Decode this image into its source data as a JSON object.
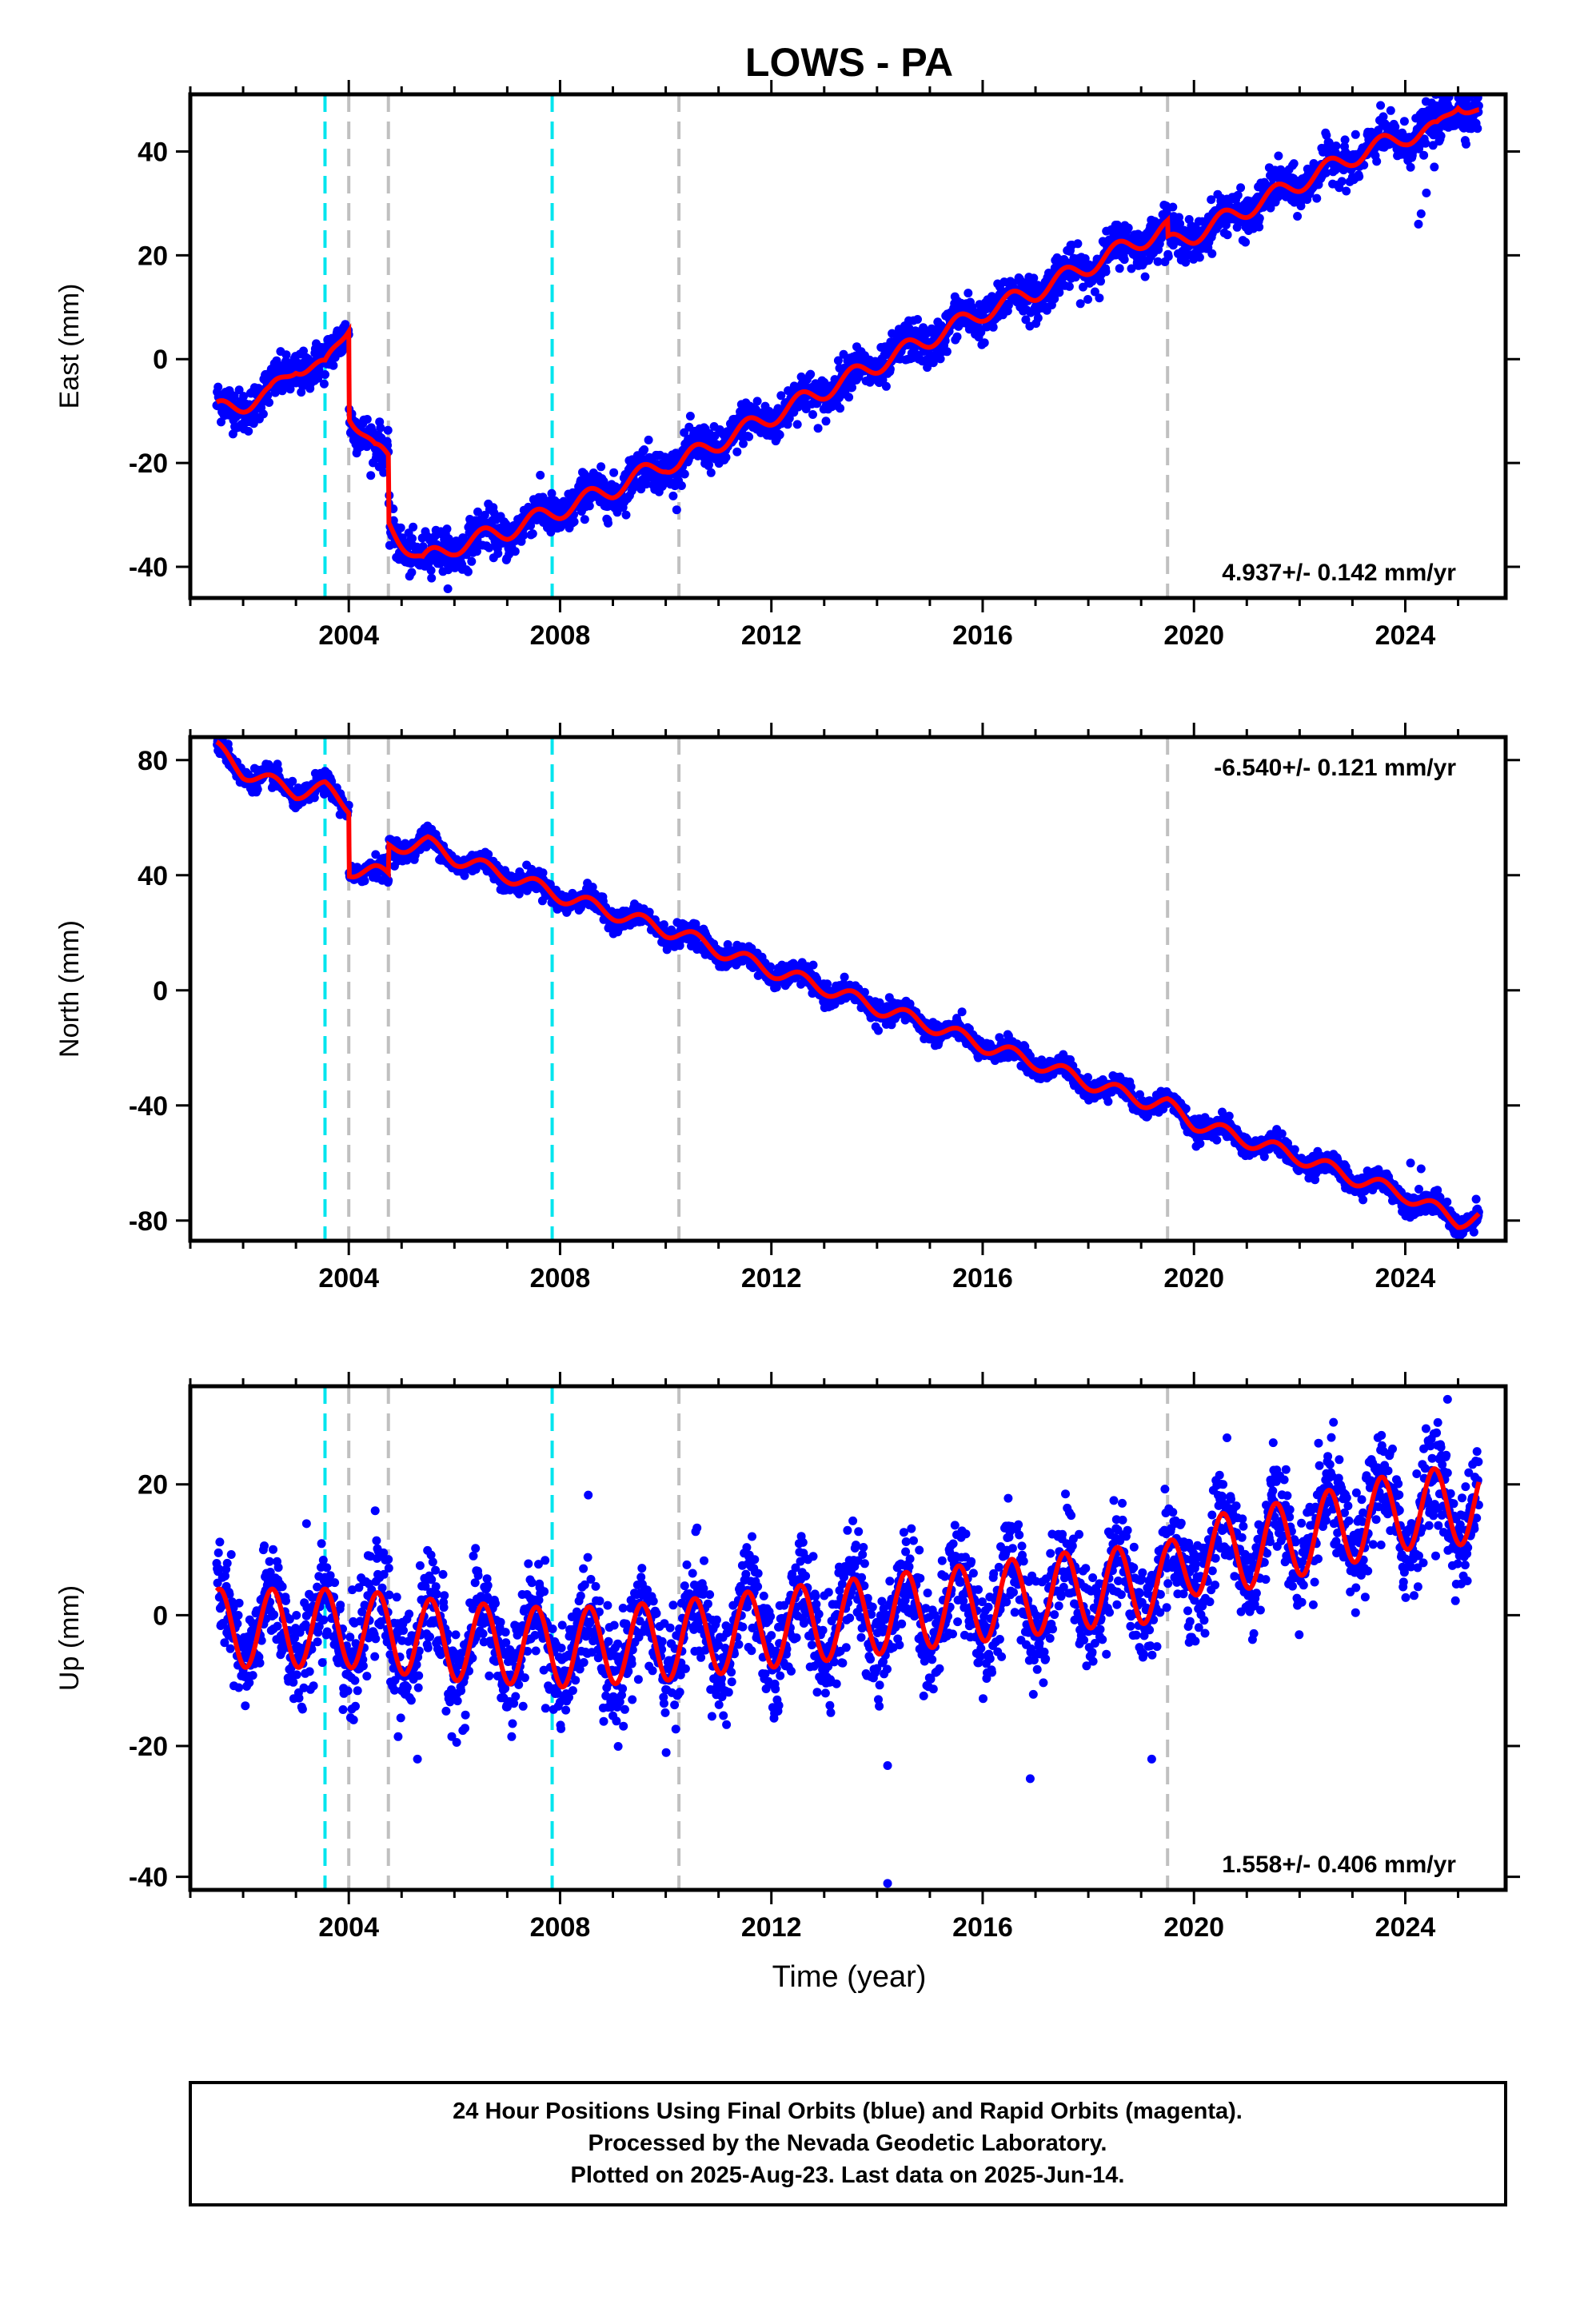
{
  "title": "LOWS - PA",
  "x_axis_label": "Time (year)",
  "footer": {
    "line1": "24 Hour Positions Using Final Orbits (blue) and Rapid Orbits (magenta).",
    "line2": "Processed by the Nevada Geodetic Laboratory.",
    "line3": "Plotted on 2025-Aug-23. Last data on 2025-Jun-14."
  },
  "colors": {
    "data_points": "#0000ff",
    "model_fit": "#ff0000",
    "equipment_change": "#00e5ee",
    "earthquake_offset": "#c0c0c0"
  },
  "chart_data": [
    {
      "type": "scatter",
      "title": "LOWS - PA",
      "ylabel": "East (mm)",
      "xlabel": "",
      "rate_label": "4.937+/- 0.142 mm/yr",
      "rate_position": "bottom-right",
      "xlim": [
        2001.0,
        2025.9
      ],
      "ylim": [
        -46,
        51
      ],
      "xticks": [
        2004,
        2008,
        2012,
        2016,
        2020,
        2024
      ],
      "yticks": [
        -40,
        -20,
        0,
        20,
        40
      ],
      "cyan_lines": [
        2003.55,
        2007.85
      ],
      "gray_lines": [
        2004.0,
        2004.75,
        2010.25,
        2019.5
      ],
      "trend_points": [
        [
          2001.5,
          -10
        ],
        [
          2002.5,
          -7
        ],
        [
          2003.0,
          -1
        ],
        [
          2003.55,
          -2
        ],
        [
          2004.0,
          7
        ],
        [
          2004.01,
          -10
        ],
        [
          2004.5,
          -18
        ],
        [
          2004.75,
          -19
        ],
        [
          2004.76,
          -32
        ],
        [
          2005.4,
          -39
        ],
        [
          2006.0,
          -36
        ],
        [
          2007.0,
          -33
        ],
        [
          2008.0,
          -29
        ],
        [
          2009.0,
          -25
        ],
        [
          2010.0,
          -20
        ],
        [
          2010.25,
          -20
        ],
        [
          2011.0,
          -16
        ],
        [
          2012.0,
          -11
        ],
        [
          2013.0,
          -6
        ],
        [
          2014.0,
          -1
        ],
        [
          2015.0,
          4
        ],
        [
          2016.0,
          9
        ],
        [
          2017.0,
          13
        ],
        [
          2018.0,
          18
        ],
        [
          2019.0,
          23
        ],
        [
          2019.5,
          25
        ],
        [
          2019.51,
          22
        ],
        [
          2020.0,
          24
        ],
        [
          2021.0,
          29
        ],
        [
          2022.0,
          34
        ],
        [
          2023.0,
          39
        ],
        [
          2024.0,
          43
        ],
        [
          2024.6,
          44
        ],
        [
          2025.0,
          50
        ],
        [
          2025.4,
          47
        ]
      ],
      "seasonal_amplitude": 1.8,
      "scatter_noise": 2.0,
      "outliers": [
        [
          2024.25,
          26
        ],
        [
          2024.3,
          28
        ],
        [
          2024.4,
          32
        ],
        [
          2024.55,
          37
        ]
      ]
    },
    {
      "type": "scatter",
      "ylabel": "North (mm)",
      "xlabel": "",
      "rate_label": "-6.540+/- 0.121 mm/yr",
      "rate_position": "top-right",
      "xlim": [
        2001.0,
        2025.9
      ],
      "ylim": [
        -87,
        88
      ],
      "xticks": [
        2004,
        2008,
        2012,
        2016,
        2020,
        2024
      ],
      "yticks": [
        -80,
        -40,
        0,
        40,
        80
      ],
      "cyan_lines": [
        2003.55,
        2007.85
      ],
      "gray_lines": [
        2004.0,
        2004.75,
        2010.25,
        2019.5
      ],
      "trend_points": [
        [
          2001.5,
          84
        ],
        [
          2002.0,
          76
        ],
        [
          2003.0,
          69
        ],
        [
          2003.55,
          70
        ],
        [
          2004.0,
          64
        ],
        [
          2004.01,
          42
        ],
        [
          2004.5,
          41
        ],
        [
          2004.75,
          40
        ],
        [
          2004.76,
          50
        ],
        [
          2005.5,
          51
        ],
        [
          2006.0,
          46
        ],
        [
          2007.0,
          40
        ],
        [
          2008.0,
          33
        ],
        [
          2009.0,
          27
        ],
        [
          2010.0,
          21
        ],
        [
          2010.25,
          20
        ],
        [
          2011.0,
          14
        ],
        [
          2012.0,
          7
        ],
        [
          2013.0,
          1
        ],
        [
          2014.0,
          -6
        ],
        [
          2015.0,
          -12
        ],
        [
          2016.0,
          -19
        ],
        [
          2017.0,
          -25
        ],
        [
          2018.0,
          -32
        ],
        [
          2019.0,
          -38
        ],
        [
          2019.5,
          -40
        ],
        [
          2020.0,
          -46
        ],
        [
          2021.0,
          -52
        ],
        [
          2022.0,
          -58
        ],
        [
          2023.0,
          -65
        ],
        [
          2024.0,
          -71
        ],
        [
          2025.0,
          -80
        ],
        [
          2025.4,
          -79
        ]
      ],
      "seasonal_amplitude": 2.5,
      "scatter_noise": 1.8,
      "outliers": [
        [
          2024.1,
          -60
        ],
        [
          2024.3,
          -62
        ],
        [
          2025.3,
          -84
        ]
      ]
    },
    {
      "type": "scatter",
      "ylabel": "Up (mm)",
      "xlabel": "Time (year)",
      "rate_label": "1.558+/- 0.406 mm/yr",
      "rate_position": "bottom-right",
      "xlim": [
        2001.0,
        2025.9
      ],
      "ylim": [
        -42,
        35
      ],
      "xticks": [
        2004,
        2008,
        2012,
        2016,
        2020,
        2024
      ],
      "yticks": [
        -40,
        -20,
        0,
        20
      ],
      "cyan_lines": [
        2003.55,
        2007.85
      ],
      "gray_lines": [
        2004.0,
        2004.75,
        2010.25,
        2019.5
      ],
      "trend_points": [
        [
          2001.5,
          -2
        ],
        [
          2004.0,
          -2
        ],
        [
          2006.0,
          -4
        ],
        [
          2008.0,
          -5
        ],
        [
          2010.0,
          -4
        ],
        [
          2012.0,
          -2
        ],
        [
          2014.0,
          0
        ],
        [
          2016.0,
          2
        ],
        [
          2018.0,
          4
        ],
        [
          2019.5,
          5
        ],
        [
          2020.0,
          9
        ],
        [
          2021.0,
          10
        ],
        [
          2022.0,
          12
        ],
        [
          2023.0,
          14
        ],
        [
          2024.0,
          16
        ],
        [
          2025.4,
          17
        ]
      ],
      "seasonal_amplitude": 6.0,
      "scatter_noise": 4.0,
      "outliers": [
        [
          2003.2,
          14
        ],
        [
          2005.3,
          -22
        ],
        [
          2014.2,
          -23
        ],
        [
          2014.2,
          -41
        ],
        [
          2016.9,
          -25
        ],
        [
          2019.2,
          -22
        ],
        [
          2024.8,
          33
        ]
      ]
    }
  ]
}
